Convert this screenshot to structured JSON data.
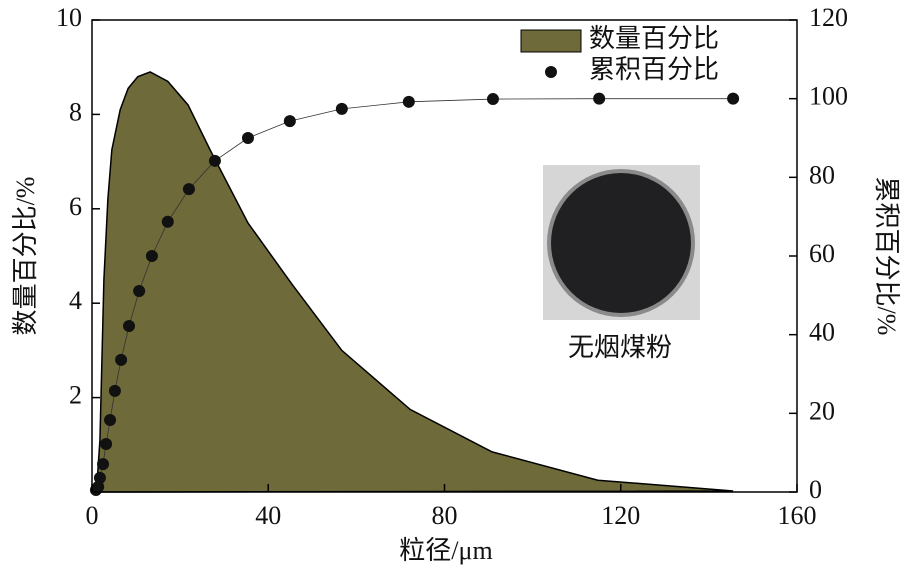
{
  "chart_data": {
    "type": "area",
    "xlabel": "粒径/μm",
    "ylabel": "数量百分比/%",
    "y2label": "累积百分比/%",
    "xlim": [
      0,
      160
    ],
    "xticks": [
      0,
      40,
      80,
      120,
      160
    ],
    "ylim": [
      0,
      10
    ],
    "yticks": [
      2,
      4,
      6,
      8,
      10
    ],
    "y2lim": [
      0,
      120
    ],
    "y2ticks": [
      0,
      20,
      40,
      60,
      80,
      100,
      120
    ],
    "legend": "upper right",
    "annotation": "无烟煤粉",
    "series": [
      {
        "name": "数量百分比",
        "type": "area",
        "color": "#6e6a3a",
        "x": [
          1,
          1.8,
          2.7,
          3.6,
          4.5,
          6.4,
          8.2,
          10.4,
          13.2,
          17.2,
          21.8,
          26.8,
          35.4,
          45.4,
          56.7,
          72.2,
          90.8,
          114.8,
          145.5
        ],
        "values": [
          0,
          1.1,
          4.5,
          6.2,
          7.25,
          8.1,
          8.55,
          8.8,
          8.9,
          8.7,
          8.2,
          7.25,
          5.7,
          4.4,
          3.0,
          1.75,
          0.85,
          0.25,
          0.02
        ]
      },
      {
        "name": "累积百分比",
        "type": "scatter",
        "axis": "y2",
        "color": "#111111",
        "x": [
          0.9,
          1.4,
          1.8,
          2.5,
          3.2,
          4.1,
          5.2,
          6.6,
          8.4,
          10.7,
          13.6,
          17.2,
          22.0,
          27.9,
          35.4,
          44.9,
          56.7,
          71.9,
          91.0,
          115.1,
          145.5
        ],
        "values": [
          0.5,
          1.3,
          3.6,
          7.1,
          12.2,
          18.3,
          25.7,
          33.6,
          42.2,
          51.1,
          60.0,
          68.7,
          77.0,
          84.2,
          90.0,
          94.3,
          97.4,
          99.2,
          99.9,
          100,
          100
        ]
      }
    ]
  }
}
